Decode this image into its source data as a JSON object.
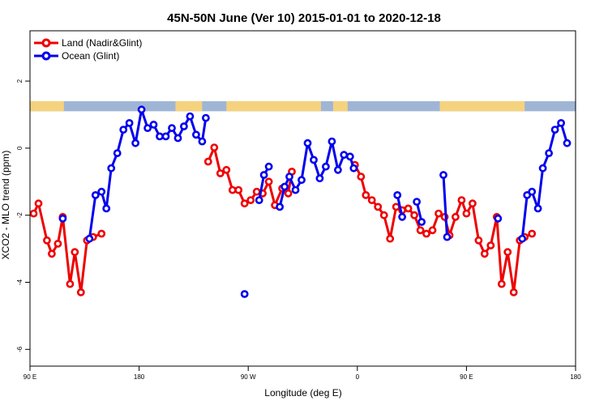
{
  "chart_data": {
    "type": "line",
    "title": "45N-50N June (Ver 10)   2015-01-01 to 2020-12-18",
    "xlabel": "Longitude (deg E)",
    "ylabel": "XCO2 - MLO trend (ppm)",
    "xlim": [
      90,
      540
    ],
    "ylim": [
      -6.5,
      3.5
    ],
    "x_ticks": [
      {
        "value": 90,
        "label": "90 E"
      },
      {
        "value": 180,
        "label": "180"
      },
      {
        "value": 270,
        "label": "90 W"
      },
      {
        "value": 360,
        "label": "0"
      },
      {
        "value": 450,
        "label": "90 E"
      },
      {
        "value": 540,
        "label": "180"
      }
    ],
    "y_ticks": [
      {
        "value": -6,
        "label": "-6"
      },
      {
        "value": -4,
        "label": "-4"
      },
      {
        "value": -2,
        "label": "-2"
      },
      {
        "value": 0,
        "label": "0"
      },
      {
        "value": 2,
        "label": "2"
      }
    ],
    "legend_position": "top-left",
    "grid": false,
    "land_ocean_strip": {
      "y_range": [
        1.1,
        1.4
      ],
      "ocean_color": "#9fb5d6",
      "land_color": "#f5d27e"
    },
    "series": [
      {
        "name": "Land (Nadir&Glint)",
        "color": "#ee0000",
        "segments": [
          [
            [
              93,
              -1.95
            ],
            [
              97,
              -1.65
            ],
            [
              104,
              -2.75
            ],
            [
              108,
              -3.15
            ],
            [
              113,
              -2.85
            ],
            [
              117,
              -2.05
            ],
            [
              123,
              -4.05
            ],
            [
              127,
              -3.1
            ],
            [
              132,
              -4.3
            ],
            [
              137,
              -2.75
            ],
            [
              142,
              -2.65
            ],
            [
              149,
              -2.55
            ]
          ],
          [
            [
              237,
              -0.4
            ],
            [
              242,
              0.02
            ],
            [
              247,
              -0.75
            ],
            [
              252,
              -0.65
            ],
            [
              257,
              -1.25
            ],
            [
              262,
              -1.25
            ],
            [
              267,
              -1.65
            ],
            [
              272,
              -1.55
            ],
            [
              277,
              -1.3
            ],
            [
              282,
              -1.35
            ],
            [
              287,
              -1.0
            ],
            [
              292,
              -1.7
            ],
            [
              298,
              -1.2
            ],
            [
              303,
              -1.35
            ],
            [
              306,
              -0.7
            ]
          ],
          [
            [
              358,
              -0.5
            ],
            [
              363,
              -0.85
            ],
            [
              367,
              -1.4
            ],
            [
              372,
              -1.55
            ],
            [
              377,
              -1.75
            ],
            [
              382,
              -2.0
            ],
            [
              387,
              -2.7
            ],
            [
              392,
              -1.75
            ],
            [
              397,
              -1.85
            ],
            [
              402,
              -1.8
            ],
            [
              407,
              -2.0
            ],
            [
              412,
              -2.45
            ],
            [
              417,
              -2.55
            ],
            [
              422,
              -2.45
            ],
            [
              427,
              -1.95
            ],
            [
              432,
              -2.05
            ],
            [
              436,
              -2.6
            ],
            [
              441,
              -2.05
            ],
            [
              446,
              -1.55
            ],
            [
              450,
              -1.95
            ],
            [
              455,
              -1.65
            ],
            [
              460,
              -2.75
            ],
            [
              465,
              -3.15
            ],
            [
              470,
              -2.9
            ],
            [
              475,
              -2.05
            ],
            [
              479,
              -4.05
            ],
            [
              484,
              -3.1
            ],
            [
              489,
              -4.3
            ],
            [
              494,
              -2.75
            ],
            [
              498,
              -2.65
            ],
            [
              504,
              -2.55
            ]
          ]
        ]
      },
      {
        "name": "Ocean (Glint)",
        "color": "#0000ee",
        "segments": [
          [
            [
              117,
              -2.1
            ]
          ],
          [
            [
              139,
              -2.7
            ],
            [
              144,
              -1.4
            ],
            [
              149,
              -1.3
            ],
            [
              153,
              -1.8
            ],
            [
              157,
              -0.6
            ],
            [
              162,
              -0.15
            ],
            [
              167,
              0.55
            ],
            [
              172,
              0.75
            ],
            [
              177,
              0.15
            ],
            [
              182,
              1.15
            ],
            [
              187,
              0.6
            ],
            [
              192,
              0.7
            ],
            [
              197,
              0.35
            ],
            [
              202,
              0.35
            ],
            [
              207,
              0.6
            ],
            [
              212,
              0.3
            ],
            [
              217,
              0.65
            ],
            [
              222,
              0.95
            ],
            [
              227,
              0.4
            ],
            [
              232,
              0.2
            ],
            [
              235,
              0.9
            ]
          ],
          [
            [
              267,
              -4.35
            ]
          ],
          [
            [
              279,
              -1.55
            ],
            [
              283,
              -0.8
            ],
            [
              287,
              -0.55
            ]
          ],
          [
            [
              296,
              -1.75
            ],
            [
              300,
              -1.15
            ],
            [
              304,
              -0.85
            ],
            [
              309,
              -1.25
            ],
            [
              314,
              -0.95
            ],
            [
              319,
              0.15
            ],
            [
              324,
              -0.35
            ],
            [
              329,
              -0.9
            ],
            [
              334,
              -0.55
            ],
            [
              339,
              0.2
            ],
            [
              344,
              -0.65
            ],
            [
              349,
              -0.2
            ],
            [
              354,
              -0.25
            ],
            [
              357,
              -0.6
            ]
          ],
          [
            [
              393,
              -1.4
            ],
            [
              397,
              -2.05
            ]
          ],
          [
            [
              409,
              -1.6
            ],
            [
              413,
              -2.2
            ]
          ],
          [
            [
              431,
              -0.8
            ],
            [
              434,
              -2.65
            ]
          ],
          [
            [
              476,
              -2.1
            ]
          ],
          [
            [
              496,
              -2.7
            ],
            [
              500,
              -1.4
            ],
            [
              504,
              -1.3
            ],
            [
              509,
              -1.8
            ],
            [
              513,
              -0.6
            ],
            [
              518,
              -0.15
            ],
            [
              523,
              0.55
            ],
            [
              528,
              0.75
            ],
            [
              533,
              0.15
            ]
          ]
        ]
      }
    ]
  }
}
